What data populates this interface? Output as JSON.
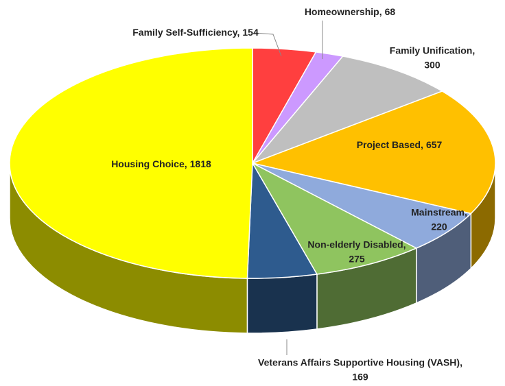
{
  "chart_data": {
    "type": "pie",
    "categories": [
      "Family Self-Sufficiency,",
      "Homeownership,",
      "Family Unification,",
      "Project Based,",
      "Mainstream,",
      "Non-elderly Disabled,",
      "Veterans Affairs Supportive Housing (VASH),",
      "Housing Choice,"
    ],
    "values": [
      154,
      68,
      300,
      657,
      220,
      275,
      169,
      1818
    ],
    "colors": [
      "#ff3f3f",
      "#cc99ff",
      "#bfbfbf",
      "#ffc000",
      "#8faadc",
      "#8fc45f",
      "#2e5b8e",
      "#ffff00"
    ]
  }
}
